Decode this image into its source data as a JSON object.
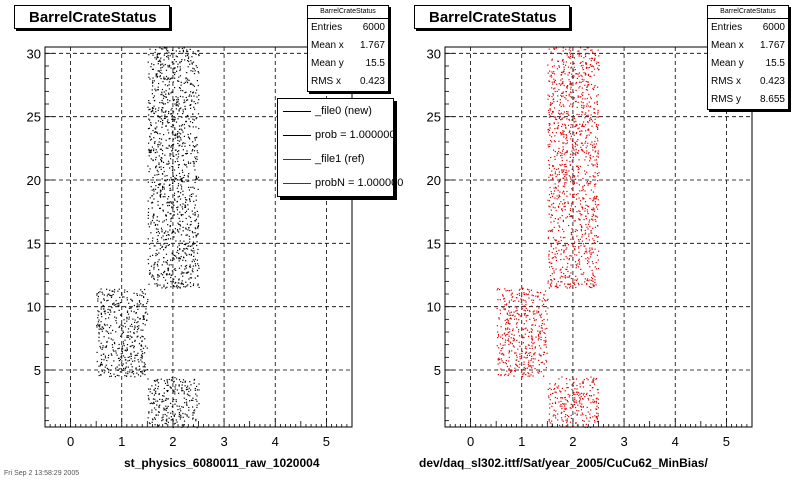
{
  "pads": [
    {
      "title": "BarrelCrateStatus",
      "x_title": "st_physics_6080011_raw_1020004",
      "marker_color": "#000000",
      "stats": {
        "name": "BarrelCrateStatus",
        "rows": [
          {
            "label": "Entries",
            "value": "6000"
          },
          {
            "label": "Mean x",
            "value": "1.767"
          },
          {
            "label": "Mean y",
            "value": "15.5"
          },
          {
            "label": "RMS x",
            "value": "0.423"
          }
        ]
      },
      "legend": [
        {
          "text": "_file0 (new)",
          "color": "#000000"
        },
        {
          "text": "prob = 1.000000",
          "color": "#000000"
        },
        {
          "text": "_file1 (ref)",
          "color": "#cc0000"
        },
        {
          "text": "probN = 1.000000",
          "color": "#cc0000"
        }
      ]
    },
    {
      "title": "BarrelCrateStatus",
      "x_title": "dev/daq_sl302.ittf/Sat/year_2005/CuCu62_MinBias/",
      "marker_color": "#dd0000",
      "stats": {
        "name": "BarrelCrateStatus",
        "rows": [
          {
            "label": "Entries",
            "value": "6000"
          },
          {
            "label": "Mean x",
            "value": "1.767"
          },
          {
            "label": "Mean y",
            "value": "15.5"
          },
          {
            "label": "RMS x",
            "value": "0.423"
          },
          {
            "label": "RMS y",
            "value": "8.655"
          }
        ]
      }
    }
  ],
  "footer": "Fri Sep 2 13:58:29 2005",
  "chart_data": [
    {
      "type": "scatter",
      "title": "BarrelCrateStatus",
      "xlabel": "st_physics_6080011_raw_1020004",
      "ylabel": "",
      "xlim": [
        -0.5,
        5.5
      ],
      "ylim": [
        0.5,
        30.5
      ],
      "xticks": [
        0,
        1,
        2,
        3,
        4,
        5
      ],
      "yticks": [
        5,
        10,
        15,
        20,
        25,
        30
      ],
      "grid": true,
      "legend_position": "top-right",
      "series": [
        {
          "name": "_file0 (new)",
          "color": "#000000",
          "regions": [
            {
              "x": [
                1.5,
                2.5
              ],
              "y": [
                11.5,
                30.5
              ]
            },
            {
              "x": [
                0.5,
                1.5
              ],
              "y": [
                4.5,
                11.5
              ]
            },
            {
              "x": [
                1.5,
                2.5
              ],
              "y": [
                0.5,
                4.5
              ]
            }
          ]
        }
      ]
    },
    {
      "type": "scatter",
      "title": "BarrelCrateStatus",
      "xlabel": "dev/daq_sl302.ittf/Sat/year_2005/CuCu62_MinBias/",
      "ylabel": "",
      "xlim": [
        -0.5,
        5.5
      ],
      "ylim": [
        0.5,
        30.5
      ],
      "xticks": [
        0,
        1,
        2,
        3,
        4,
        5
      ],
      "yticks": [
        5,
        10,
        15,
        20,
        25,
        30
      ],
      "grid": true,
      "series": [
        {
          "name": "_file1 (ref)",
          "color": "#dd0000",
          "regions": [
            {
              "x": [
                1.5,
                2.5
              ],
              "y": [
                11.5,
                30.5
              ]
            },
            {
              "x": [
                0.5,
                1.5
              ],
              "y": [
                4.5,
                11.5
              ]
            },
            {
              "x": [
                1.5,
                2.5
              ],
              "y": [
                0.5,
                4.5
              ]
            }
          ]
        }
      ]
    }
  ]
}
